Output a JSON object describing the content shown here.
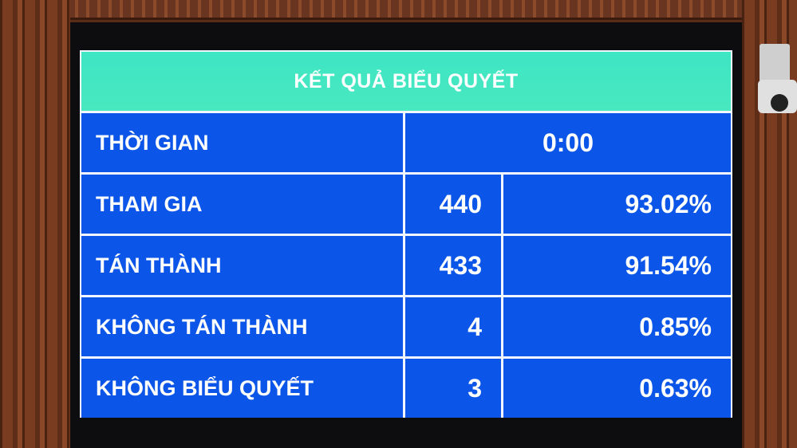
{
  "board": {
    "title": "KẾT QUẢ BIỂU QUYẾT",
    "time_label": "THỜI GIAN",
    "time_value": "0:00",
    "rows": [
      {
        "label": "THAM GIA",
        "count": "440",
        "percent": "93.02%"
      },
      {
        "label": "TÁN THÀNH",
        "count": "433",
        "percent": "91.54%"
      },
      {
        "label": "KHÔNG TÁN THÀNH",
        "count": "4",
        "percent": "0.85%"
      },
      {
        "label": "KHÔNG BIỂU QUYẾT",
        "count": "3",
        "percent": "0.63%"
      }
    ]
  },
  "colors": {
    "header": "#3ee6c4",
    "cells": "#0b55e8",
    "text": "#ffffff"
  }
}
